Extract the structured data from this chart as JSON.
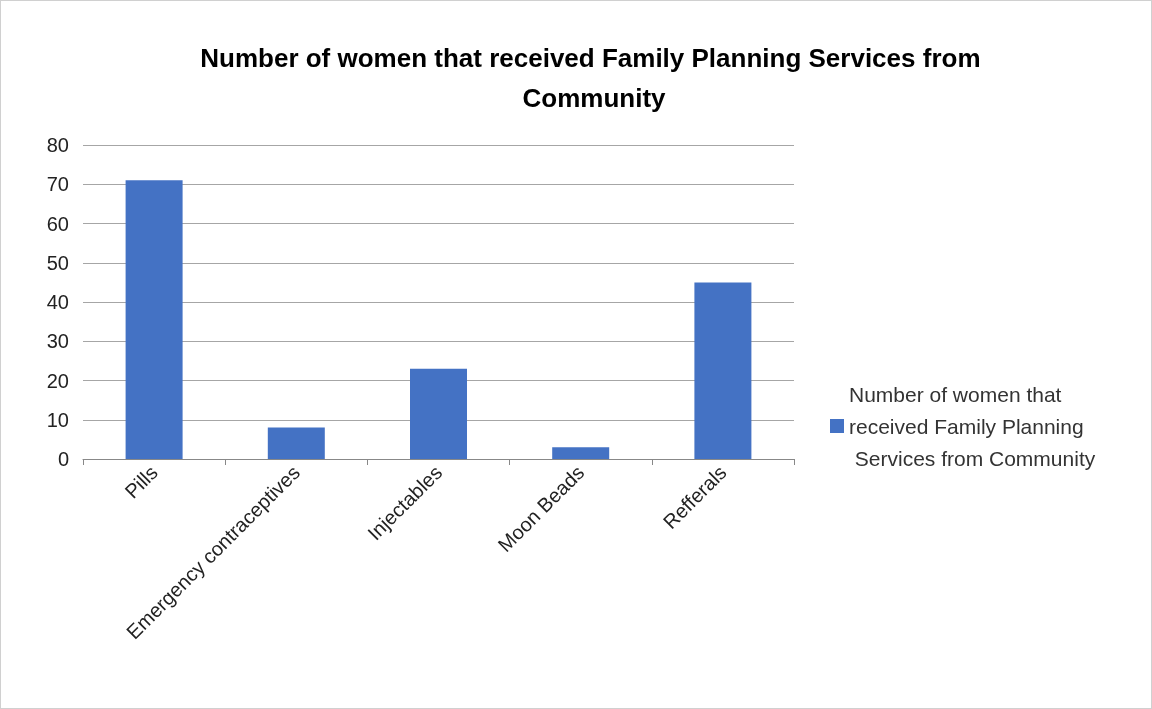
{
  "chart_data": {
    "type": "bar",
    "title": "Number of women that received Family Planning Services from Community",
    "categories": [
      "Pills",
      "Emergency contraceptives",
      "Injectables",
      "Moon Beads",
      "Refferals"
    ],
    "series": [
      {
        "name": "Number of women that received Family Planning Services from Community",
        "color": "#4472c4",
        "values": [
          71,
          8,
          23,
          3,
          45
        ]
      }
    ],
    "ylim": [
      0,
      80
    ],
    "yticks": [
      0,
      10,
      20,
      30,
      40,
      50,
      60,
      70,
      80
    ],
    "grid": "y",
    "legend": "right"
  }
}
